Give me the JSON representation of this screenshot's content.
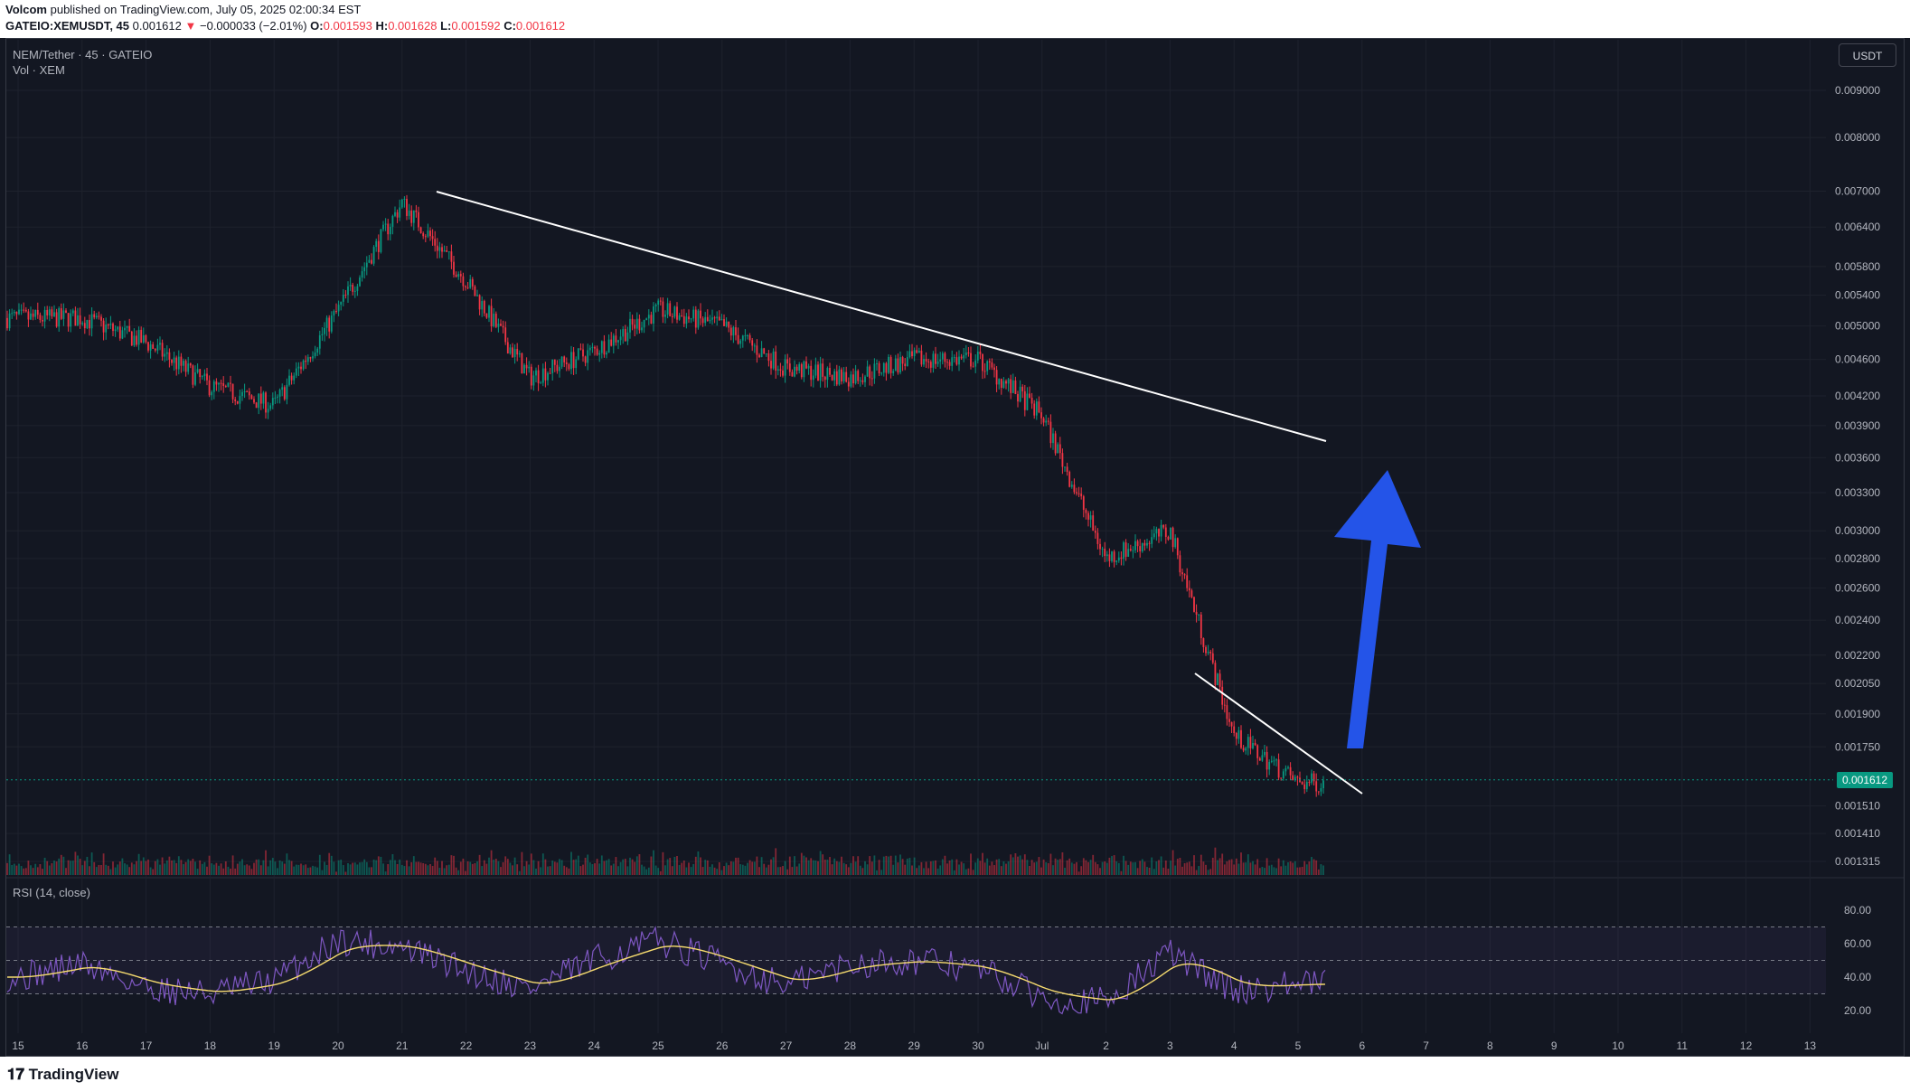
{
  "header": {
    "publisher": "Volcom",
    "published_text": " published on TradingView.com, July 05, 2025 02:00:34 EST",
    "symbol_line": "GATEIO:XEMUSDT, 45",
    "last": "0.001612",
    "arrow": "▼",
    "change": "−0.000033 (−2.01%)",
    "o_label": "O:",
    "o": "0.001593",
    "h_label": "H:",
    "h": "0.001628",
    "l_label": "L:",
    "l": "0.001592",
    "c_label": "C:",
    "c": "0.001612"
  },
  "legend": {
    "main_title": "NEM/Tether · 45 · GATEIO",
    "volume": "Vol · XEM",
    "rsi": "RSI (14, close)"
  },
  "currency_button": "USDT",
  "current_price_tag": "0.001612",
  "price_axis": [
    "0.009000",
    "0.008000",
    "0.007000",
    "0.006400",
    "0.005800",
    "0.005400",
    "0.005000",
    "0.004600",
    "0.004200",
    "0.003900",
    "0.003600",
    "0.003300",
    "0.003000",
    "0.002800",
    "0.002600",
    "0.002400",
    "0.002200",
    "0.002050",
    "0.001900",
    "0.001750",
    "0.001510",
    "0.001410",
    "0.001315"
  ],
  "rsi_axis": [
    "80.00",
    "60.00",
    "40.00",
    "20.00"
  ],
  "time_axis": [
    "15",
    "16",
    "17",
    "18",
    "19",
    "20",
    "21",
    "22",
    "23",
    "24",
    "25",
    "26",
    "27",
    "28",
    "29",
    "30",
    "Jul",
    "2",
    "3",
    "4",
    "5",
    "6",
    "7",
    "8",
    "9",
    "10",
    "11",
    "12",
    "13"
  ],
  "footer": {
    "logo_text": "TradingView"
  },
  "colors": {
    "up": "#089981",
    "down": "#f23645",
    "rsi_line": "#7e57c2",
    "rsi_ma": "#f7dc6f",
    "arrow": "#2454e8",
    "trendline": "#ffffff"
  },
  "chart_data": {
    "type": "candlestick",
    "symbol": "NEM/Tether",
    "interval": "45",
    "exchange": "GATEIO",
    "ohlc_last": {
      "open": 0.001593,
      "high": 0.001628,
      "low": 0.001592,
      "close": 0.001612
    },
    "y_scale": "log",
    "approx_close_path": {
      "x": [
        "15",
        "16",
        "17",
        "18",
        "19",
        "20",
        "21",
        "22",
        "23",
        "24",
        "25",
        "26",
        "27",
        "28",
        "29",
        "30",
        "Jul",
        "2",
        "3",
        "4",
        "5"
      ],
      "y": [
        0.0051,
        0.0051,
        0.0048,
        0.0043,
        0.0041,
        0.0052,
        0.0068,
        0.0056,
        0.0044,
        0.0047,
        0.0052,
        0.005,
        0.0045,
        0.0044,
        0.0046,
        0.0046,
        0.004,
        0.0028,
        0.003,
        0.0018,
        0.0016
      ]
    },
    "rsi": {
      "x": [
        "15",
        "16",
        "17",
        "18",
        "19",
        "20",
        "21",
        "22",
        "23",
        "24",
        "25",
        "26",
        "27",
        "28",
        "29",
        "30",
        "Jul",
        "2",
        "3",
        "4",
        "5"
      ],
      "values": [
        40,
        48,
        34,
        30,
        38,
        62,
        58,
        44,
        33,
        50,
        62,
        48,
        35,
        48,
        50,
        45,
        28,
        25,
        55,
        32,
        36
      ],
      "bands": [
        30,
        50,
        70
      ]
    }
  }
}
